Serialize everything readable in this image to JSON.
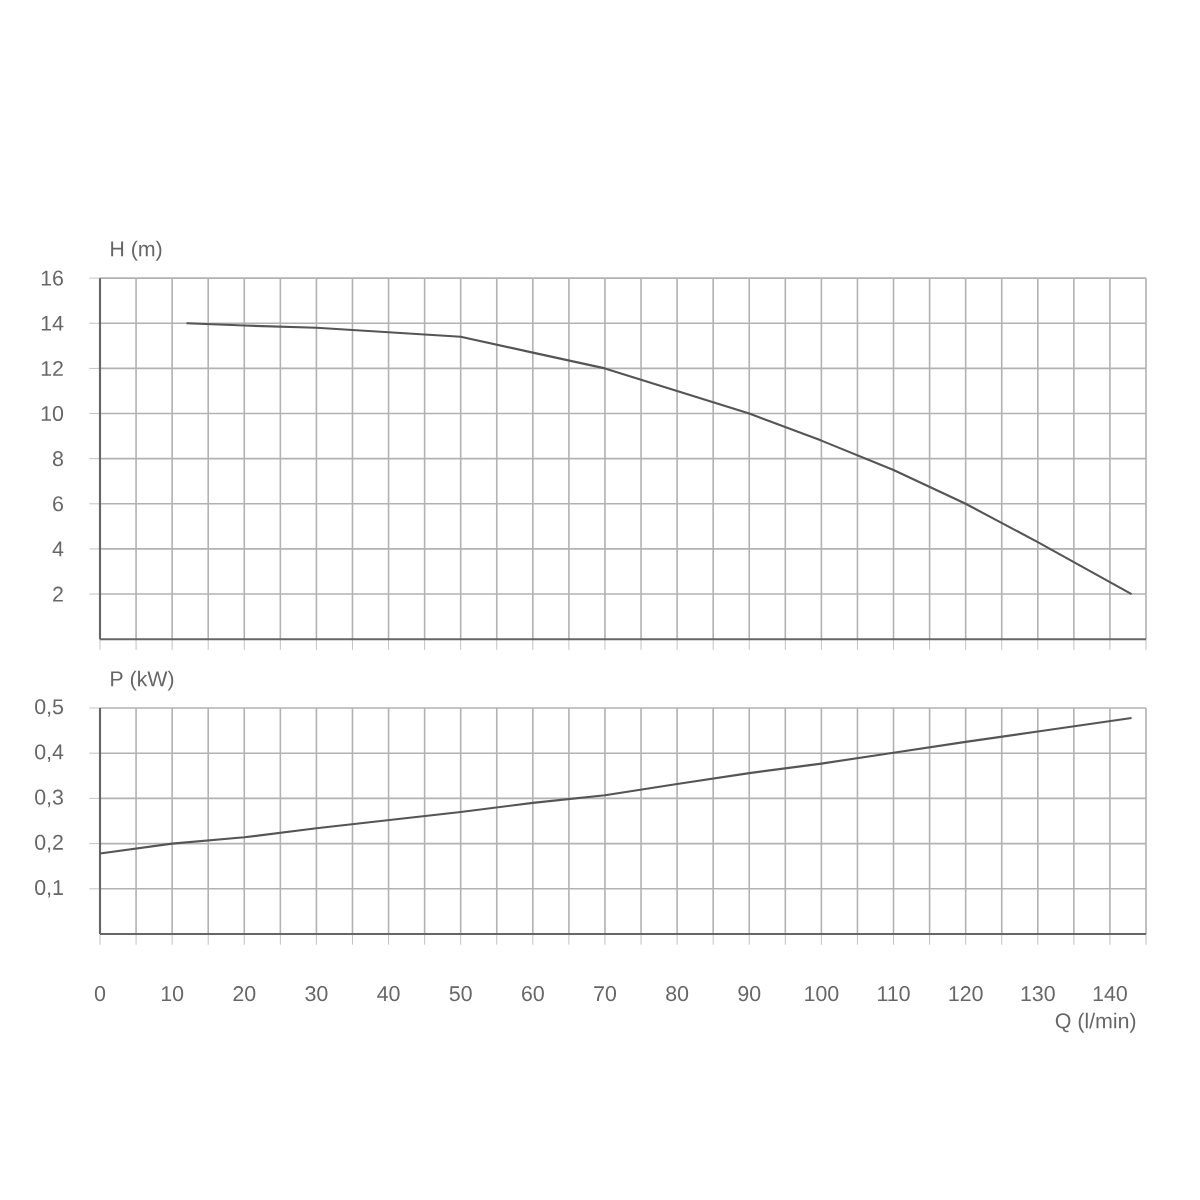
{
  "chart_data": [
    {
      "type": "line",
      "ylabel": "H (m)",
      "color": "#555555",
      "grid": true,
      "tick_labels": "y",
      "x": [
        12,
        20,
        30,
        40,
        50,
        60,
        70,
        80,
        90,
        100,
        110,
        120,
        130,
        143
      ],
      "values": [
        14.0,
        13.9,
        13.8,
        13.6,
        13.4,
        12.7,
        12.0,
        11.0,
        10.0,
        8.8,
        7.5,
        6.0,
        4.3,
        2.0
      ],
      "xlim": [
        0,
        145
      ],
      "ylim": [
        0,
        16
      ],
      "xticks": [
        0,
        5,
        10,
        15,
        20,
        25,
        30,
        35,
        40,
        45,
        50,
        55,
        60,
        65,
        70,
        75,
        80,
        85,
        90,
        95,
        100,
        105,
        110,
        115,
        120,
        125,
        130,
        135,
        140,
        145
      ],
      "yticks": [
        2,
        4,
        6,
        8,
        10,
        12,
        14,
        16
      ]
    },
    {
      "type": "line",
      "ylabel": "P (kW)",
      "xlabel": "Q (l/min)",
      "color": "#555555",
      "grid": true,
      "x": [
        0,
        10,
        20,
        30,
        40,
        50,
        60,
        70,
        80,
        90,
        100,
        110,
        120,
        130,
        143
      ],
      "values": [
        0.178,
        0.2,
        0.214,
        0.234,
        0.252,
        0.27,
        0.29,
        0.307,
        0.332,
        0.356,
        0.377,
        0.401,
        0.425,
        0.448,
        0.478
      ],
      "xlim": [
        0,
        145
      ],
      "ylim": [
        0,
        0.5
      ],
      "xticks": [
        0,
        {
          "value": 5,
          "label": null
        },
        10,
        {
          "value": 15,
          "label": null
        },
        20,
        {
          "value": 25,
          "label": null
        },
        30,
        {
          "value": 35,
          "label": null
        },
        40,
        {
          "value": 45,
          "label": null
        },
        50,
        {
          "value": 55,
          "label": null
        },
        60,
        {
          "value": 65,
          "label": null
        },
        70,
        {
          "value": 75,
          "label": null
        },
        80,
        {
          "value": 85,
          "label": null
        },
        90,
        {
          "value": 95,
          "label": null
        },
        100,
        {
          "value": 105,
          "label": null
        },
        110,
        {
          "value": 115,
          "label": null
        },
        120,
        {
          "value": 125,
          "label": null
        },
        130,
        {
          "value": 135,
          "label": null
        },
        140,
        {
          "value": 145,
          "label": null
        }
      ],
      "yticks": [
        {
          "value": 0.1,
          "label": "0,1"
        },
        {
          "value": 0.2,
          "label": "0,2"
        },
        {
          "value": 0.3,
          "label": "0,3"
        },
        {
          "value": 0.4,
          "label": "0,4"
        },
        {
          "value": 0.5,
          "label": "0,5"
        }
      ]
    }
  ]
}
